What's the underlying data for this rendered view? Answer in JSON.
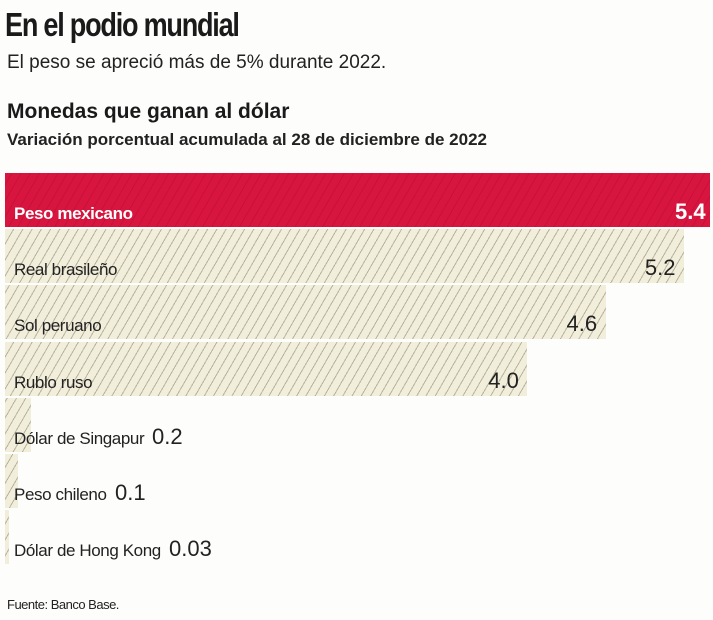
{
  "header": {
    "title": "En el podio mundial",
    "subtitle": "El peso se apreció más de 5% durante 2022."
  },
  "chart_data": {
    "type": "bar",
    "orientation": "horizontal",
    "title": "Monedas que ganan al dólar",
    "subtitle": "Variación porcentual acumulada al 28 de diciembre de 2022",
    "categories": [
      "Peso mexicano",
      "Real brasileño",
      "Sol peruano",
      "Rublo ruso",
      "Dólar de Singapur",
      "Peso chileno",
      "Dólar de Hong Kong"
    ],
    "values": [
      5.4,
      5.2,
      4.6,
      4.0,
      0.2,
      0.1,
      0.03
    ],
    "value_labels": [
      "5.4",
      "5.2",
      "4.6",
      "4.0",
      "0.2",
      "0.1",
      "0.03"
    ],
    "highlight_index": 0,
    "colors": {
      "highlight": "#d7153f",
      "bar": "#f2eedc",
      "hatch": "#b9b39a"
    },
    "xlim": [
      0,
      5.4
    ],
    "grid": false
  },
  "footer": {
    "source": "Fuente: Banco Base."
  }
}
